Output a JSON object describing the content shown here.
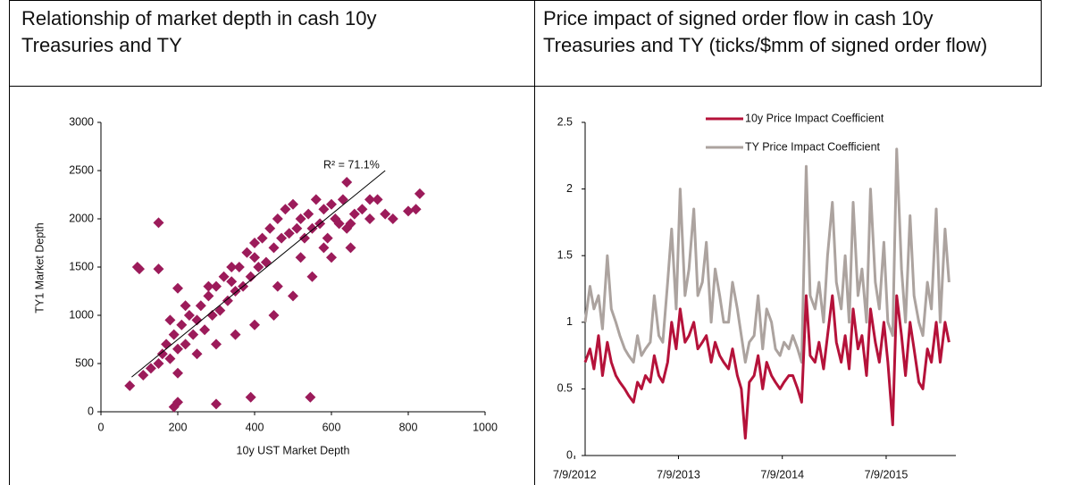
{
  "chart_data": [
    {
      "type": "scatter",
      "title": "Relationship of market depth in cash 10y Treasuries and TY",
      "xlabel": "10y UST Market Depth",
      "ylabel": "TY1 Market Depth",
      "annotation": "R² = 71.1%",
      "color": "#9c1b5a",
      "xlim": [
        0,
        1000
      ],
      "xticks": [
        0,
        200,
        400,
        600,
        800,
        1000
      ],
      "ylim": [
        0,
        3000
      ],
      "yticks": [
        0,
        500,
        1000,
        1500,
        2000,
        2500,
        3000
      ],
      "trendline": {
        "x": [
          80,
          740
        ],
        "y": [
          360,
          2500
        ]
      },
      "x": [
        110,
        130,
        150,
        160,
        170,
        180,
        190,
        200,
        210,
        220,
        230,
        240,
        250,
        260,
        270,
        280,
        290,
        300,
        310,
        320,
        330,
        340,
        350,
        360,
        370,
        380,
        390,
        400,
        410,
        420,
        430,
        440,
        450,
        460,
        470,
        480,
        490,
        500,
        510,
        520,
        530,
        540,
        550,
        560,
        570,
        580,
        590,
        600,
        610,
        620,
        630,
        640,
        650,
        660,
        680,
        700,
        720,
        740,
        760,
        800,
        820,
        830,
        200,
        250,
        300,
        350,
        400,
        450,
        500,
        550,
        600,
        650,
        220,
        280,
        340,
        400,
        460,
        520,
        580,
        640,
        700,
        100,
        95,
        150,
        150,
        190,
        200,
        300,
        545,
        180,
        200,
        75,
        390
      ],
      "y": [
        380,
        450,
        500,
        600,
        700,
        550,
        800,
        650,
        900,
        700,
        1000,
        800,
        950,
        1100,
        850,
        1200,
        1000,
        1300,
        1050,
        1400,
        1150,
        1350,
        1250,
        1500,
        1300,
        1650,
        1400,
        1750,
        1500,
        1800,
        1550,
        1900,
        1700,
        2000,
        1800,
        2100,
        1850,
        2150,
        1900,
        2000,
        1800,
        2050,
        1900,
        2200,
        1950,
        2100,
        1800,
        2150,
        2000,
        1950,
        2200,
        2380,
        1950,
        2050,
        2100,
        2000,
        2200,
        2050,
        2000,
        2080,
        2100,
        2260,
        400,
        600,
        700,
        800,
        900,
        1000,
        1200,
        1400,
        1600,
        1700,
        1100,
        1300,
        1500,
        1600,
        1300,
        1600,
        1700,
        1900,
        2200,
        1480,
        1500,
        1960,
        1480,
        50,
        100,
        80,
        150,
        950,
        1280,
        270,
        150
      ]
    },
    {
      "type": "line",
      "title": "Price impact of signed order flow in cash 10y Treasuries and TY (ticks/$mm of signed order flow)",
      "legend": "top",
      "xlim": [
        "2012-08-15",
        "2016-03-10"
      ],
      "xticks": [
        {
          "value": "2012-07-09",
          "label": "7/9/2012"
        },
        {
          "value": "2013-07-09",
          "label": "7/9/2013"
        },
        {
          "value": "2014-07-09",
          "label": "7/9/2014"
        },
        {
          "value": "2015-07-09",
          "label": "7/9/2015"
        }
      ],
      "ylim": [
        0,
        2.5
      ],
      "yticks": [
        0,
        0.5,
        1,
        1.5,
        2,
        2.5
      ],
      "x": [
        "2012-08-15",
        "2012-09-01",
        "2012-09-15",
        "2012-10-01",
        "2012-10-15",
        "2012-11-01",
        "2012-11-15",
        "2012-12-01",
        "2012-12-15",
        "2013-01-01",
        "2013-01-15",
        "2013-02-01",
        "2013-02-15",
        "2013-03-01",
        "2013-03-15",
        "2013-04-01",
        "2013-04-15",
        "2013-05-01",
        "2013-05-15",
        "2013-06-01",
        "2013-06-15",
        "2013-07-01",
        "2013-07-15",
        "2013-08-01",
        "2013-08-15",
        "2013-09-01",
        "2013-09-15",
        "2013-10-01",
        "2013-10-15",
        "2013-11-01",
        "2013-11-15",
        "2013-12-01",
        "2013-12-15",
        "2014-01-01",
        "2014-01-15",
        "2014-02-01",
        "2014-02-15",
        "2014-03-01",
        "2014-03-15",
        "2014-04-01",
        "2014-04-15",
        "2014-05-01",
        "2014-05-15",
        "2014-06-01",
        "2014-06-15",
        "2014-07-01",
        "2014-07-15",
        "2014-08-01",
        "2014-08-15",
        "2014-09-01",
        "2014-09-15",
        "2014-10-01",
        "2014-10-15",
        "2014-11-01",
        "2014-11-15",
        "2014-12-01",
        "2014-12-15",
        "2015-01-01",
        "2015-01-15",
        "2015-02-01",
        "2015-02-15",
        "2015-03-01",
        "2015-03-15",
        "2015-04-01",
        "2015-04-15",
        "2015-05-01",
        "2015-05-15",
        "2015-06-01",
        "2015-06-15",
        "2015-07-01",
        "2015-07-15",
        "2015-08-01",
        "2015-08-15",
        "2015-09-01",
        "2015-09-15",
        "2015-10-01",
        "2015-10-15",
        "2015-11-01",
        "2015-11-15",
        "2015-12-01",
        "2015-12-15",
        "2016-01-01",
        "2016-01-15",
        "2016-02-01",
        "2016-02-15"
      ],
      "series": [
        {
          "name": "TY Price Impact Coefficient",
          "color": "#aca39f",
          "values": [
            1.0,
            1.27,
            1.1,
            1.2,
            0.95,
            1.5,
            1.1,
            1.0,
            0.9,
            0.8,
            0.75,
            0.7,
            0.9,
            0.75,
            0.8,
            0.85,
            1.2,
            0.9,
            0.85,
            1.3,
            1.7,
            1.1,
            2.0,
            1.2,
            1.4,
            1.85,
            1.2,
            1.3,
            1.6,
            1.0,
            1.4,
            1.2,
            1.0,
            1.0,
            1.3,
            1.1,
            0.9,
            0.7,
            0.85,
            0.9,
            1.2,
            0.8,
            1.1,
            1.0,
            0.8,
            0.75,
            0.85,
            0.8,
            0.9,
            0.8,
            0.7,
            2.17,
            1.2,
            1.1,
            1.3,
            1.0,
            1.5,
            1.9,
            1.3,
            1.1,
            1.5,
            1.0,
            1.9,
            1.2,
            1.4,
            1.0,
            2.0,
            1.3,
            1.1,
            1.6,
            1.0,
            0.9,
            2.3,
            1.4,
            1.0,
            1.8,
            1.2,
            1.0,
            0.9,
            1.3,
            1.1,
            1.85,
            1.0,
            1.7,
            1.3
          ]
        },
        {
          "name": "10y Price Impact Coefficient",
          "color": "#b5123a",
          "values": [
            0.7,
            0.8,
            0.65,
            0.9,
            0.6,
            0.85,
            0.7,
            0.6,
            0.55,
            0.5,
            0.45,
            0.4,
            0.55,
            0.5,
            0.6,
            0.55,
            0.75,
            0.6,
            0.55,
            0.7,
            1.0,
            0.8,
            1.1,
            0.85,
            0.9,
            1.0,
            0.8,
            0.85,
            0.9,
            0.7,
            0.85,
            0.75,
            0.7,
            0.65,
            0.8,
            0.6,
            0.5,
            0.13,
            0.55,
            0.6,
            0.75,
            0.5,
            0.7,
            0.6,
            0.55,
            0.5,
            0.55,
            0.6,
            0.6,
            0.5,
            0.4,
            1.2,
            0.75,
            0.7,
            0.85,
            0.65,
            0.9,
            1.2,
            0.85,
            0.7,
            0.9,
            0.65,
            1.1,
            0.8,
            0.9,
            0.6,
            1.1,
            0.85,
            0.7,
            1.0,
            0.7,
            0.23,
            1.2,
            0.9,
            0.6,
            1.0,
            0.8,
            0.55,
            0.5,
            0.8,
            0.7,
            1.0,
            0.7,
            1.0,
            0.85
          ]
        }
      ]
    }
  ]
}
